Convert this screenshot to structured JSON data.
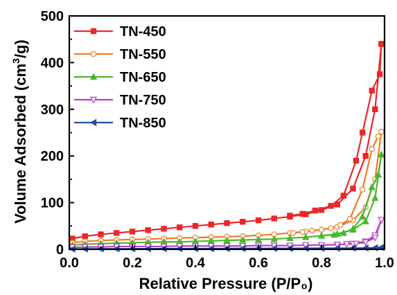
{
  "chart_data": {
    "type": "line",
    "xlabel": "Relative Pressure (P/P₀)",
    "ylabel_main": "Volume Adsorbed (cm",
    "ylabel_sup": "3",
    "ylabel_tail": "/g)",
    "xlim": [
      0.0,
      1.0
    ],
    "ylim": [
      0,
      500
    ],
    "xticks": [
      "0.0",
      "0.2",
      "0.4",
      "0.6",
      "0.8",
      "1.0"
    ],
    "yticks": [
      "0",
      "100",
      "200",
      "300",
      "400",
      "500"
    ],
    "xtick_values": [
      0.0,
      0.2,
      0.4,
      0.6,
      0.8,
      1.0
    ],
    "ytick_values": [
      0,
      100,
      200,
      300,
      400,
      500
    ],
    "grid": false,
    "legend_position": "top-left",
    "series": [
      {
        "name": "TN-450",
        "color": "#e8282b",
        "marker": "square",
        "filled": true,
        "adsorption": [
          [
            0.01,
            23
          ],
          [
            0.05,
            28
          ],
          [
            0.1,
            32
          ],
          [
            0.15,
            35
          ],
          [
            0.2,
            38
          ],
          [
            0.25,
            41
          ],
          [
            0.3,
            44
          ],
          [
            0.35,
            47
          ],
          [
            0.4,
            50
          ],
          [
            0.45,
            53
          ],
          [
            0.5,
            56
          ],
          [
            0.55,
            59
          ],
          [
            0.6,
            62
          ],
          [
            0.65,
            66
          ],
          [
            0.7,
            70
          ],
          [
            0.75,
            75
          ],
          [
            0.8,
            84
          ],
          [
            0.85,
            96
          ],
          [
            0.9,
            130
          ],
          [
            0.94,
            200
          ],
          [
            0.97,
            300
          ],
          [
            0.99,
            440
          ]
        ],
        "desorption": [
          [
            0.99,
            440
          ],
          [
            0.985,
            375
          ],
          [
            0.96,
            340
          ],
          [
            0.93,
            250
          ],
          [
            0.91,
            190
          ],
          [
            0.87,
            115
          ],
          [
            0.83,
            93
          ],
          [
            0.78,
            83
          ],
          [
            0.74,
            76
          ],
          [
            0.7,
            72
          ]
        ]
      },
      {
        "name": "TN-550",
        "color": "#f07b22",
        "marker": "circle",
        "filled": false,
        "adsorption": [
          [
            0.01,
            14
          ],
          [
            0.05,
            17
          ],
          [
            0.1,
            19
          ],
          [
            0.15,
            20
          ],
          [
            0.2,
            21
          ],
          [
            0.25,
            22
          ],
          [
            0.3,
            23
          ],
          [
            0.35,
            24
          ],
          [
            0.4,
            25
          ],
          [
            0.45,
            26
          ],
          [
            0.5,
            27
          ],
          [
            0.55,
            28
          ],
          [
            0.6,
            30
          ],
          [
            0.65,
            32
          ],
          [
            0.7,
            35
          ],
          [
            0.75,
            38
          ],
          [
            0.8,
            42
          ],
          [
            0.85,
            48
          ],
          [
            0.9,
            62
          ],
          [
            0.94,
            90
          ],
          [
            0.97,
            150
          ],
          [
            0.99,
            252
          ]
        ],
        "desorption": [
          [
            0.99,
            252
          ],
          [
            0.98,
            242
          ],
          [
            0.96,
            215
          ],
          [
            0.93,
            128
          ],
          [
            0.89,
            65
          ],
          [
            0.86,
            52
          ],
          [
            0.83,
            45
          ],
          [
            0.8,
            42
          ],
          [
            0.77,
            40
          ],
          [
            0.74,
            37
          ],
          [
            0.71,
            35
          ]
        ]
      },
      {
        "name": "TN-650",
        "color": "#4ab82d",
        "marker": "triangle-up",
        "filled": true,
        "adsorption": [
          [
            0.01,
            9
          ],
          [
            0.05,
            11
          ],
          [
            0.1,
            12
          ],
          [
            0.15,
            13
          ],
          [
            0.2,
            14
          ],
          [
            0.25,
            15
          ],
          [
            0.3,
            16
          ],
          [
            0.35,
            16
          ],
          [
            0.4,
            17
          ],
          [
            0.45,
            18
          ],
          [
            0.5,
            19
          ],
          [
            0.55,
            20
          ],
          [
            0.6,
            21
          ],
          [
            0.65,
            22
          ],
          [
            0.7,
            24
          ],
          [
            0.75,
            26
          ],
          [
            0.8,
            29
          ],
          [
            0.85,
            33
          ],
          [
            0.9,
            42
          ],
          [
            0.94,
            60
          ],
          [
            0.97,
            110
          ],
          [
            0.99,
            203
          ]
        ],
        "desorption": [
          [
            0.99,
            203
          ],
          [
            0.98,
            160
          ],
          [
            0.96,
            133
          ],
          [
            0.93,
            70
          ],
          [
            0.9,
            44
          ],
          [
            0.87,
            35
          ],
          [
            0.84,
            31
          ],
          [
            0.8,
            29
          ]
        ]
      },
      {
        "name": "TN-750",
        "color": "#b542c4",
        "marker": "triangle-down",
        "filled": false,
        "adsorption": [
          [
            0.01,
            4
          ],
          [
            0.05,
            5
          ],
          [
            0.1,
            5
          ],
          [
            0.15,
            6
          ],
          [
            0.2,
            6
          ],
          [
            0.25,
            6
          ],
          [
            0.3,
            6
          ],
          [
            0.35,
            7
          ],
          [
            0.4,
            7
          ],
          [
            0.45,
            7
          ],
          [
            0.5,
            7
          ],
          [
            0.55,
            7
          ],
          [
            0.6,
            8
          ],
          [
            0.65,
            8
          ],
          [
            0.7,
            8
          ],
          [
            0.75,
            9
          ],
          [
            0.8,
            9
          ],
          [
            0.85,
            10
          ],
          [
            0.9,
            12
          ],
          [
            0.94,
            17
          ],
          [
            0.97,
            30
          ],
          [
            0.99,
            63
          ]
        ],
        "desorption": [
          [
            0.99,
            63
          ],
          [
            0.97,
            25
          ],
          [
            0.94,
            15
          ],
          [
            0.91,
            12
          ],
          [
            0.88,
            11
          ],
          [
            0.85,
            10
          ]
        ]
      },
      {
        "name": "TN-850",
        "color": "#2a4aa8",
        "marker": "triangle-left",
        "filled": true,
        "adsorption": [
          [
            0.01,
            0.5
          ],
          [
            0.05,
            0.8
          ],
          [
            0.1,
            1
          ],
          [
            0.15,
            1
          ],
          [
            0.2,
            1.2
          ],
          [
            0.25,
            1.3
          ],
          [
            0.3,
            1.4
          ],
          [
            0.35,
            1.5
          ],
          [
            0.4,
            1.5
          ],
          [
            0.45,
            1.6
          ],
          [
            0.5,
            1.7
          ],
          [
            0.55,
            1.8
          ],
          [
            0.6,
            1.9
          ],
          [
            0.65,
            2
          ],
          [
            0.7,
            2
          ],
          [
            0.75,
            2.1
          ],
          [
            0.8,
            2.2
          ],
          [
            0.85,
            2.3
          ],
          [
            0.9,
            2.5
          ],
          [
            0.94,
            2.8
          ],
          [
            0.97,
            3.2
          ],
          [
            0.99,
            4
          ]
        ],
        "desorption": []
      }
    ]
  }
}
